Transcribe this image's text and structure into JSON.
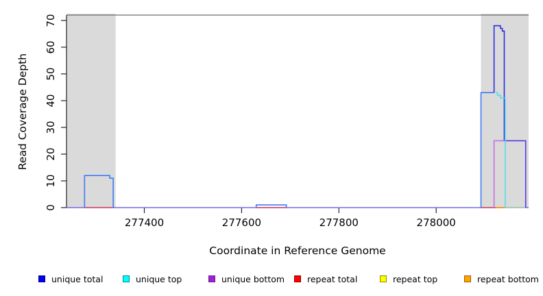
{
  "axes": {
    "ylabel": "Read Coverage Depth",
    "xlabel": "Coordinate in Reference Genome"
  },
  "chart_data": {
    "type": "line",
    "subtype": "step-coverage-plot",
    "title": "",
    "xlabel": "Coordinate in Reference Genome",
    "ylabel": "Read Coverage Depth",
    "xlim": [
      277240,
      278190
    ],
    "ylim": [
      0,
      72
    ],
    "x_tick_values": [
      277400,
      277600,
      277800,
      278000
    ],
    "y_tick_values": [
      0,
      10,
      20,
      30,
      40,
      50,
      60,
      70
    ],
    "grid": false,
    "legend_position": "bottom",
    "shaded_regions": [
      {
        "name": "repeat-region-left",
        "x0": 277240,
        "x1": 277341,
        "color": "#DADADA"
      },
      {
        "name": "repeat-region-right",
        "x0": 278092,
        "x1": 278190,
        "color": "#DADADA"
      }
    ],
    "series": [
      {
        "name": "unique total",
        "color": "#0000FF",
        "steps": [
          [
            277240,
            0
          ],
          [
            277277,
            12
          ],
          [
            277329,
            11
          ],
          [
            277336,
            0
          ],
          [
            277630,
            1
          ],
          [
            277692,
            0
          ],
          [
            278092,
            43
          ],
          [
            278119,
            68
          ],
          [
            278132,
            67
          ],
          [
            278136,
            66
          ],
          [
            278140,
            25
          ],
          [
            278184,
            0
          ]
        ]
      },
      {
        "name": "unique top",
        "color": "#00FFFF",
        "steps": [
          [
            277240,
            0
          ],
          [
            277277,
            12
          ],
          [
            277329,
            11
          ],
          [
            277336,
            0
          ],
          [
            277630,
            1
          ],
          [
            277692,
            0
          ],
          [
            278092,
            43
          ],
          [
            278126,
            42
          ],
          [
            278132,
            41
          ],
          [
            278142,
            0
          ]
        ]
      },
      {
        "name": "unique bottom",
        "color": "#A020D0",
        "steps": [
          [
            277240,
            0
          ],
          [
            278119,
            25
          ],
          [
            278184,
            0
          ]
        ]
      },
      {
        "name": "repeat total",
        "color": "#FF0000",
        "steps": [
          [
            277240,
            0
          ]
        ]
      },
      {
        "name": "repeat top",
        "color": "#FFFF00",
        "steps": [
          [
            277240,
            0
          ]
        ]
      },
      {
        "name": "repeat bottom",
        "color": "#FFA500",
        "steps": [
          [
            277240,
            0
          ]
        ]
      }
    ],
    "render_paths": [
      {
        "name": "baseline-blend-violet",
        "color": "#7468EC",
        "points": [
          [
            277240,
            0
          ],
          [
            278190,
            0
          ]
        ]
      },
      {
        "name": "repeat-total-under-peak1",
        "color": "#E0485A",
        "points": [
          [
            277277,
            0
          ],
          [
            277337,
            0
          ]
        ]
      },
      {
        "name": "repeat-total-under-bump",
        "color": "#E0485A",
        "points": [
          [
            277630,
            0
          ],
          [
            277692,
            0
          ]
        ]
      },
      {
        "name": "repeat-total-right",
        "color": "#E0485A",
        "points": [
          [
            278092,
            0
          ],
          [
            278122,
            0
          ]
        ]
      },
      {
        "name": "repeat-bottom-right",
        "color": "#FF9800",
        "points": [
          [
            278122,
            0
          ],
          [
            278142,
            0
          ]
        ]
      },
      {
        "name": "repeat-top-cyan-blend",
        "color": "#A2D6A2",
        "points": [
          [
            278142,
            0
          ],
          [
            278184,
            0
          ]
        ]
      },
      {
        "name": "unique-total-top-left-peak",
        "color": "#3E7BF5",
        "points": [
          [
            277277,
            0
          ],
          [
            277277,
            12
          ],
          [
            277329,
            12
          ],
          [
            277329,
            11
          ],
          [
            277336,
            11
          ],
          [
            277336,
            0
          ]
        ]
      },
      {
        "name": "unique-total-top-bump",
        "color": "#3E7BF5",
        "points": [
          [
            277630,
            0
          ],
          [
            277630,
            1
          ],
          [
            277692,
            1
          ],
          [
            277692,
            0
          ]
        ]
      },
      {
        "name": "unique-total-top-shelf43",
        "color": "#3E7BF5",
        "points": [
          [
            278092,
            0
          ],
          [
            278092,
            43
          ],
          [
            278119,
            43
          ]
        ]
      },
      {
        "name": "unique-total-solo-peak68",
        "color": "#2B2BDD",
        "points": [
          [
            278119,
            43
          ],
          [
            278119,
            68
          ],
          [
            278132,
            68
          ],
          [
            278132,
            67
          ],
          [
            278136,
            67
          ],
          [
            278136,
            66
          ],
          [
            278140,
            66
          ],
          [
            278140,
            25
          ]
        ]
      },
      {
        "name": "unique-total-bottom-shelf25",
        "color": "#5A35E6",
        "points": [
          [
            278140,
            25
          ],
          [
            278184,
            25
          ],
          [
            278184,
            0
          ]
        ]
      },
      {
        "name": "unique-bottom-rise25",
        "color": "#C36FE3",
        "points": [
          [
            278119,
            0
          ],
          [
            278119,
            25
          ],
          [
            278140,
            25
          ]
        ]
      },
      {
        "name": "unique-top-stair",
        "color": "#55DDE8",
        "points": [
          [
            278122,
            43
          ],
          [
            278126,
            43
          ],
          [
            278126,
            42
          ],
          [
            278132,
            42
          ],
          [
            278132,
            41
          ],
          [
            278142,
            41
          ],
          [
            278142,
            0
          ]
        ]
      }
    ]
  },
  "legend": {
    "items": [
      {
        "label": "unique total",
        "fill": "#0000F5",
        "border": "#000080"
      },
      {
        "label": "unique top",
        "fill": "#00FFFF",
        "border": "#008B8B"
      },
      {
        "label": "unique bottom",
        "fill": "#A11FD4",
        "border": "#641E90"
      },
      {
        "label": "repeat total",
        "fill": "#FF0000",
        "border": "#8B0000"
      },
      {
        "label": "repeat top",
        "fill": "#FFFF00",
        "border": "#8B8B00"
      },
      {
        "label": "repeat bottom",
        "fill": "#FFA500",
        "border": "#A05A00"
      }
    ]
  }
}
